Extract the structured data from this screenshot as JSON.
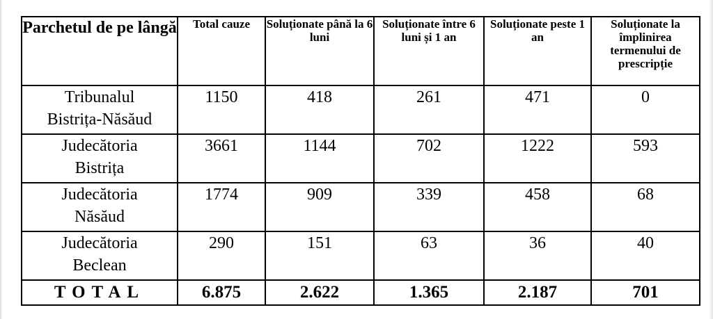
{
  "table": {
    "headers": [
      "Parchetul de pe lângă",
      "Total cauze",
      "Soluționate până la 6 luni",
      "Soluționate între 6 luni și 1 an",
      "Soluționate peste 1 an",
      "Soluționate la împlinirea termenului de prescripție"
    ],
    "rows": [
      {
        "name": "Tribunalul\nBistrița-Năsăud",
        "values": [
          "1150",
          "418",
          "261",
          "471",
          "0"
        ]
      },
      {
        "name": "Judecătoria\nBistrița",
        "values": [
          "3661",
          "1144",
          "702",
          "1222",
          "593"
        ]
      },
      {
        "name": "Judecătoria\nNăsăud",
        "values": [
          "1774",
          "909",
          "339",
          "458",
          "68"
        ]
      },
      {
        "name": "Judecătoria\nBeclean",
        "values": [
          "290",
          "151",
          "63",
          "36",
          "40"
        ]
      }
    ],
    "total": {
      "label": "TOTAL",
      "values": [
        "6.875",
        "2.622",
        "1.365",
        "2.187",
        "701"
      ]
    }
  }
}
